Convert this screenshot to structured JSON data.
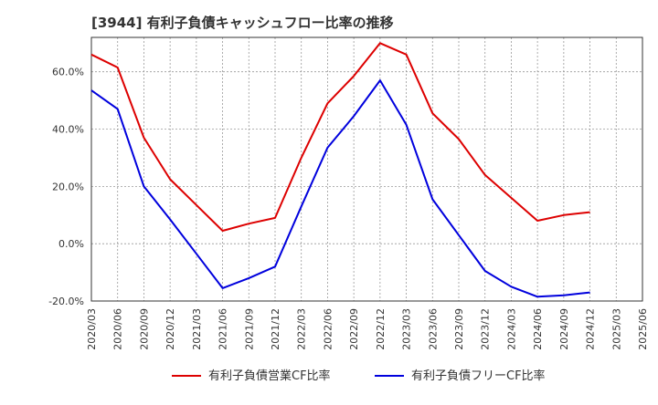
{
  "chart_data": {
    "type": "line",
    "title": "[3944]  有利子負債キャッシュフロー比率の推移",
    "xlabel": "",
    "ylabel": "",
    "ylim": [
      -20,
      72
    ],
    "y_ticks": [
      -20,
      0,
      20,
      40,
      60
    ],
    "y_tick_labels": [
      "-20.0%",
      "0.0%",
      "20.0%",
      "40.0%",
      "60.0%"
    ],
    "x": [
      "2020/03",
      "2020/06",
      "2020/09",
      "2020/12",
      "2021/03",
      "2021/06",
      "2021/09",
      "2021/12",
      "2022/03",
      "2022/06",
      "2022/09",
      "2022/12",
      "2023/03",
      "2023/06",
      "2023/09",
      "2023/12",
      "2024/03",
      "2024/06",
      "2024/09",
      "2024/12",
      "2025/03",
      "2025/06"
    ],
    "grid": true,
    "legend_position": "bottom",
    "series": [
      {
        "name": "有利子負債営業CF比率",
        "color": "#dd0000",
        "values": [
          66,
          61.5,
          37,
          22.5,
          13.5,
          4.5,
          7,
          9,
          30,
          49,
          58.5,
          70,
          66,
          45.5,
          36.5,
          24,
          16,
          8,
          10,
          11,
          null,
          null
        ]
      },
      {
        "name": "有利子負債フリーCF比率",
        "color": "#0000dd",
        "values": [
          53.5,
          47,
          20,
          8.5,
          -3.5,
          -15.5,
          -12,
          -8,
          13,
          33.5,
          44.5,
          57,
          41.5,
          15.5,
          3,
          -9.5,
          -15,
          -18.5,
          -18,
          -17,
          null,
          null
        ]
      }
    ]
  }
}
